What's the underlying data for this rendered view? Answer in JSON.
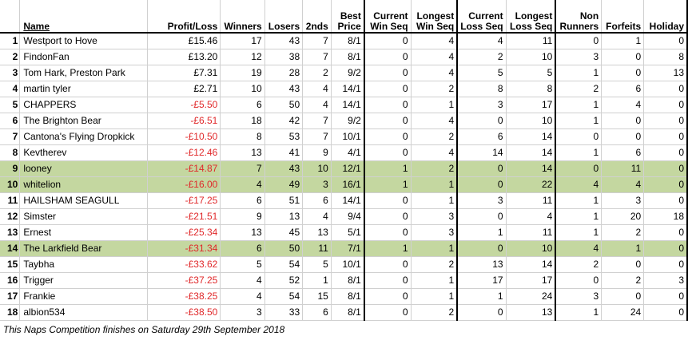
{
  "headers": {
    "name": "Name",
    "profit_loss": "Profit/Loss",
    "winners": "Winners",
    "losers": "Losers",
    "seconds": "2nds",
    "best_price": [
      "Best",
      "Price"
    ],
    "current_win_seq": [
      "Current",
      "Win Seq"
    ],
    "longest_win_seq": [
      "Longest",
      "Win Seq"
    ],
    "current_loss_seq": [
      "Current",
      "Loss Seq"
    ],
    "longest_loss_seq": [
      "Longest",
      "Loss Seq"
    ],
    "non_runners": [
      "Non",
      "Runners"
    ],
    "forfeits": "Forfeits",
    "holiday": "Holiday"
  },
  "rows": [
    {
      "pos": "1",
      "name": "Westport to Hove",
      "pl": "£15.46",
      "w": "17",
      "l": "43",
      "s": "7",
      "bp": "8/1",
      "cws": "0",
      "lws": "4",
      "cls": "4",
      "lls": "11",
      "nr": "0",
      "f": "1",
      "h": "0",
      "neg": false,
      "hl": false
    },
    {
      "pos": "2",
      "name": "FindonFan",
      "pl": "£13.20",
      "w": "12",
      "l": "38",
      "s": "7",
      "bp": "8/1",
      "cws": "0",
      "lws": "4",
      "cls": "2",
      "lls": "10",
      "nr": "3",
      "f": "0",
      "h": "8",
      "neg": false,
      "hl": false
    },
    {
      "pos": "3",
      "name": "Tom Hark, Preston Park",
      "pl": "£7.31",
      "w": "19",
      "l": "28",
      "s": "2",
      "bp": "9/2",
      "cws": "0",
      "lws": "4",
      "cls": "5",
      "lls": "5",
      "nr": "1",
      "f": "0",
      "h": "13",
      "neg": false,
      "hl": false
    },
    {
      "pos": "4",
      "name": "martin tyler",
      "pl": "£2.71",
      "w": "10",
      "l": "43",
      "s": "4",
      "bp": "14/1",
      "cws": "0",
      "lws": "2",
      "cls": "8",
      "lls": "8",
      "nr": "2",
      "f": "6",
      "h": "0",
      "neg": false,
      "hl": false
    },
    {
      "pos": "5",
      "name": "CHAPPERS",
      "pl": "-£5.50",
      "w": "6",
      "l": "50",
      "s": "4",
      "bp": "14/1",
      "cws": "0",
      "lws": "1",
      "cls": "3",
      "lls": "17",
      "nr": "1",
      "f": "4",
      "h": "0",
      "neg": true,
      "hl": false
    },
    {
      "pos": "6",
      "name": "The Brighton Bear",
      "pl": "-£6.51",
      "w": "18",
      "l": "42",
      "s": "7",
      "bp": "9/2",
      "cws": "0",
      "lws": "4",
      "cls": "0",
      "lls": "10",
      "nr": "1",
      "f": "0",
      "h": "0",
      "neg": true,
      "hl": false
    },
    {
      "pos": "7",
      "name": "Cantona's Flying Dropkick",
      "pl": "-£10.50",
      "w": "8",
      "l": "53",
      "s": "7",
      "bp": "10/1",
      "cws": "0",
      "lws": "2",
      "cls": "6",
      "lls": "14",
      "nr": "0",
      "f": "0",
      "h": "0",
      "neg": true,
      "hl": false
    },
    {
      "pos": "8",
      "name": "Kevtherev",
      "pl": "-£12.46",
      "w": "13",
      "l": "41",
      "s": "9",
      "bp": "4/1",
      "cws": "0",
      "lws": "4",
      "cls": "14",
      "lls": "14",
      "nr": "1",
      "f": "6",
      "h": "0",
      "neg": true,
      "hl": false
    },
    {
      "pos": "9",
      "name": "looney",
      "pl": "-£14.87",
      "w": "7",
      "l": "43",
      "s": "10",
      "bp": "12/1",
      "cws": "1",
      "lws": "2",
      "cls": "0",
      "lls": "14",
      "nr": "0",
      "f": "11",
      "h": "0",
      "neg": true,
      "hl": true
    },
    {
      "pos": "10",
      "name": "whitelion",
      "pl": "-£16.00",
      "w": "4",
      "l": "49",
      "s": "3",
      "bp": "16/1",
      "cws": "1",
      "lws": "1",
      "cls": "0",
      "lls": "22",
      "nr": "4",
      "f": "4",
      "h": "0",
      "neg": true,
      "hl": true
    },
    {
      "pos": "11",
      "name": "HAILSHAM SEAGULL",
      "pl": "-£17.25",
      "w": "6",
      "l": "51",
      "s": "6",
      "bp": "14/1",
      "cws": "0",
      "lws": "1",
      "cls": "3",
      "lls": "11",
      "nr": "1",
      "f": "3",
      "h": "0",
      "neg": true,
      "hl": false
    },
    {
      "pos": "12",
      "name": "Simster",
      "pl": "-£21.51",
      "w": "9",
      "l": "13",
      "s": "4",
      "bp": "9/4",
      "cws": "0",
      "lws": "3",
      "cls": "0",
      "lls": "4",
      "nr": "1",
      "f": "20",
      "h": "18",
      "neg": true,
      "hl": false
    },
    {
      "pos": "13",
      "name": "Ernest",
      "pl": "-£25.34",
      "w": "13",
      "l": "45",
      "s": "13",
      "bp": "5/1",
      "cws": "0",
      "lws": "3",
      "cls": "1",
      "lls": "11",
      "nr": "1",
      "f": "2",
      "h": "0",
      "neg": true,
      "hl": false
    },
    {
      "pos": "14",
      "name": "The Larkfield Bear",
      "pl": "-£31.34",
      "w": "6",
      "l": "50",
      "s": "11",
      "bp": "7/1",
      "cws": "1",
      "lws": "1",
      "cls": "0",
      "lls": "10",
      "nr": "4",
      "f": "1",
      "h": "0",
      "neg": true,
      "hl": true
    },
    {
      "pos": "15",
      "name": "Taybha",
      "pl": "-£33.62",
      "w": "5",
      "l": "54",
      "s": "5",
      "bp": "10/1",
      "cws": "0",
      "lws": "2",
      "cls": "13",
      "lls": "14",
      "nr": "2",
      "f": "0",
      "h": "0",
      "neg": true,
      "hl": false
    },
    {
      "pos": "16",
      "name": "Trigger",
      "pl": "-£37.25",
      "w": "4",
      "l": "52",
      "s": "1",
      "bp": "8/1",
      "cws": "0",
      "lws": "1",
      "cls": "17",
      "lls": "17",
      "nr": "0",
      "f": "2",
      "h": "3",
      "neg": true,
      "hl": false
    },
    {
      "pos": "17",
      "name": "Frankie",
      "pl": "-£38.25",
      "w": "4",
      "l": "54",
      "s": "15",
      "bp": "8/1",
      "cws": "0",
      "lws": "1",
      "cls": "1",
      "lls": "24",
      "nr": "3",
      "f": "0",
      "h": "0",
      "neg": true,
      "hl": false
    },
    {
      "pos": "18",
      "name": "albion534",
      "pl": "-£38.50",
      "w": "3",
      "l": "33",
      "s": "6",
      "bp": "8/1",
      "cws": "0",
      "lws": "2",
      "cls": "0",
      "lls": "13",
      "nr": "1",
      "f": "24",
      "h": "0",
      "neg": true,
      "hl": false
    }
  ],
  "footer": "This Naps Competition finishes on Saturday 29th September 2018"
}
